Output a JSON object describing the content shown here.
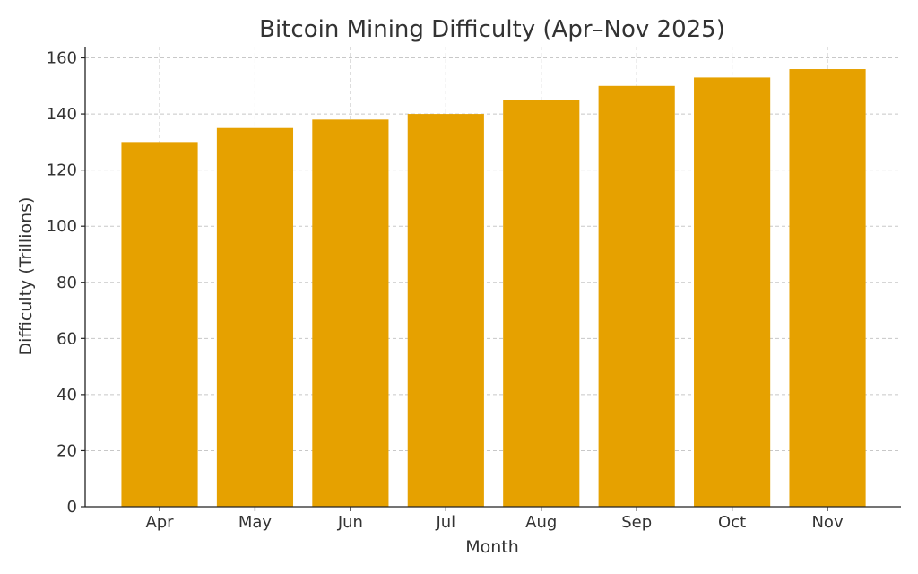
{
  "chart_data": {
    "type": "bar",
    "title": "Bitcoin Mining Difficulty (Apr–Nov 2025)",
    "xlabel": "Month",
    "ylabel": "Difficulty (Trillions)",
    "categories": [
      "Apr",
      "May",
      "Jun",
      "Jul",
      "Aug",
      "Sep",
      "Oct",
      "Nov"
    ],
    "values": [
      130,
      135,
      138,
      140,
      145,
      150,
      153,
      156
    ],
    "ylim": [
      0,
      164
    ],
    "yticks": [
      0,
      20,
      40,
      60,
      80,
      100,
      120,
      140,
      160
    ],
    "grid": true,
    "bar_color": "#E6A100"
  }
}
